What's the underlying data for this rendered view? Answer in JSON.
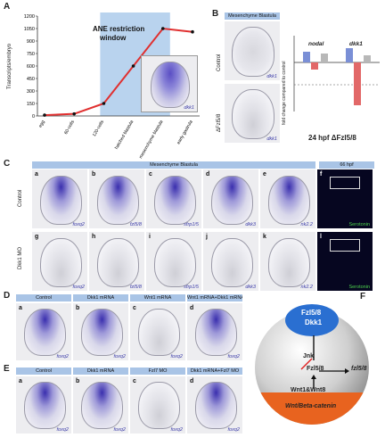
{
  "panelA": {
    "letter": "A",
    "ylabel": "Transcripts/embryo",
    "window_label_1": "ANE restriction",
    "window_label_2": "window",
    "inset_gene": "dkk1"
  },
  "chart_data": {
    "type": "line",
    "categories": [
      "egg",
      "60-cells",
      "120-cells",
      "hatched blastula",
      "mesenchyme blastula",
      "early gastrula"
    ],
    "x_tick_labels": [
      "egg",
      "60-cells",
      "120-cells",
      "hatched blastula",
      "mesenchyme blastula",
      "early gastrula"
    ],
    "y_ticks": [
      "0",
      "150",
      "300",
      "450",
      "600",
      "750",
      "900",
      "1050",
      "1200"
    ],
    "ylim": [
      0,
      1200
    ],
    "ylabel": "Transcripts/embryo",
    "series": [
      {
        "values": [
          10,
          25,
          150,
          600,
          1050,
          1010
        ],
        "color": "#e03030"
      }
    ],
    "highlight_region": {
      "from": "120-cells",
      "to": "mesenchyme blastula",
      "label": "ANE restriction window"
    },
    "grid": false
  },
  "panelB": {
    "letter": "B",
    "header": "Mesenchyme Blastula",
    "row1_label": "Control",
    "row2_label": "ΔFzl5/8",
    "gene": "dkk1",
    "chart_ylabel": "fold change compared to control",
    "legend": [
      "nodal",
      "dkk1"
    ],
    "bottom_label": "24 hpf ΔFzl5/8",
    "colors": {
      "control": "#7a8fd6",
      "fzl": "#e26868"
    }
  },
  "panelC": {
    "letter": "C",
    "header": "Mesenchyme Blastula",
    "header2": "66 hpf",
    "row1_label": "Control",
    "row2_label": "Dkk1 MO",
    "row1": [
      {
        "sub": "a",
        "gene": "foxq2"
      },
      {
        "sub": "b",
        "gene": "fzl5/8"
      },
      {
        "sub": "c",
        "gene": "sfrp1/5"
      },
      {
        "sub": "d",
        "gene": "dkk3"
      },
      {
        "sub": "e",
        "gene": "nk2.2"
      },
      {
        "sub": "f",
        "gene": "Serotonin"
      }
    ],
    "row2": [
      {
        "sub": "g",
        "gene": "foxq2"
      },
      {
        "sub": "h",
        "gene": "fzl5/8"
      },
      {
        "sub": "i",
        "gene": "sfrp1/5"
      },
      {
        "sub": "j",
        "gene": "dkk3"
      },
      {
        "sub": "k",
        "gene": "nk2.2"
      },
      {
        "sub": "l",
        "gene": "Serotonin"
      }
    ]
  },
  "panelD": {
    "letter": "D",
    "items": [
      {
        "sub": "a",
        "title": "Control",
        "gene": "foxq2"
      },
      {
        "sub": "b",
        "title": "Dkk1 mRNA",
        "gene": "foxq2"
      },
      {
        "sub": "c",
        "title": "Wnt1 mRNA",
        "gene": "foxq2"
      },
      {
        "sub": "d",
        "title": "Wnt1 mRNA+Dkk1 mRNA",
        "gene": "foxq2"
      }
    ]
  },
  "panelE": {
    "letter": "E",
    "items": [
      {
        "sub": "a",
        "title": "Control",
        "gene": "foxq2"
      },
      {
        "sub": "b",
        "title": "Dkk1 mRNA",
        "gene": "foxq2"
      },
      {
        "sub": "c",
        "title": "Fzl7 MO",
        "gene": "foxq2"
      },
      {
        "sub": "d",
        "title": "Dkk1 mRNA+Fzl7 MO",
        "gene": "foxq2"
      }
    ]
  },
  "panelF": {
    "letter": "F",
    "top_label_1": "Fzl5/8",
    "top_label_2": "Dkk1",
    "jnk": "Jnk",
    "fzl58": "Fzl5/8",
    "fzl58_gene": "fzl5/8",
    "wnt": "Wnt1&Wnt8",
    "bottom_label": "Wnt/Beta-catenin",
    "colors": {
      "top": "#2a6fd1",
      "bottom": "#e8631f",
      "inhibit": "#e02020"
    }
  }
}
